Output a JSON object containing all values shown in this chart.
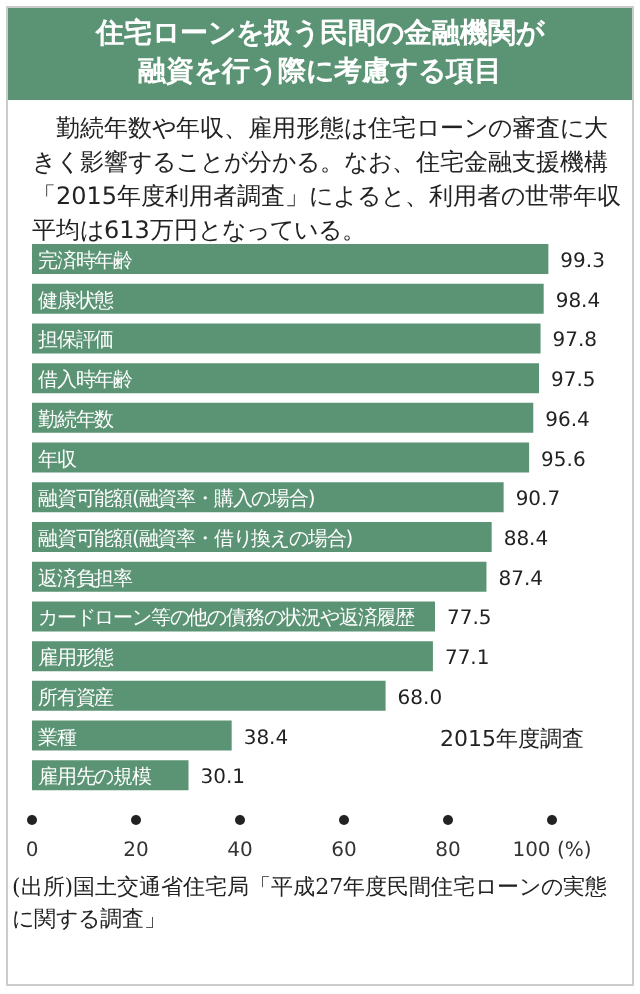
{
  "chart_data": {
    "type": "bar",
    "orientation": "horizontal",
    "title": "住宅ローンを扱う民間の金融機関が融資を行う際に考慮する項目",
    "subtitle": "勤続年数や年収、雇用形態は住宅ローンの審査に大きく影響することが分かる。なお、住宅金融支援機構「2015年度利用者調査」によると、利用者の世帯年収平均は613万円となっている。",
    "categories": [
      "完済時年齢",
      "健康状態",
      "担保評価",
      "借入時年齢",
      "勤続年数",
      "年収",
      "融資可能額(融資率・購入の場合)",
      "融資可能額(融資率・借り換えの場合)",
      "返済負担率",
      "カードローン等の他の債務の状況や返済履歴",
      "雇用形態",
      "所有資産",
      "業種",
      "雇用先の規模"
    ],
    "values": [
      99.3,
      98.4,
      97.8,
      97.5,
      96.4,
      95.6,
      90.7,
      88.4,
      87.4,
      77.5,
      77.1,
      68.0,
      38.4,
      30.1
    ],
    "value_labels": [
      "99.3",
      "98.4",
      "97.8",
      "97.5",
      "96.4",
      "95.6",
      "90.7",
      "88.4",
      "87.4",
      "77.5",
      "77.1",
      "68.0",
      "38.4",
      "30.1"
    ],
    "color": "#5b9474",
    "xlim": [
      0,
      100
    ],
    "xticks": [
      0,
      20,
      40,
      60,
      80,
      {
        "value": 100,
        "label": "100 (%)"
      }
    ],
    "annotations": [
      "2015年度調査",
      "(出所)国土交通省住宅局「平成27年度民間住宅ローンの実態に関する調査」"
    ]
  }
}
